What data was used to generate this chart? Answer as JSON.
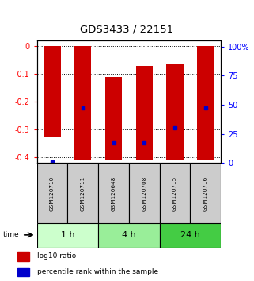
{
  "title": "GDS3433 / 22151",
  "samples": [
    "GSM120710",
    "GSM120711",
    "GSM120648",
    "GSM120708",
    "GSM120715",
    "GSM120716"
  ],
  "time_groups": [
    {
      "label": "1 h",
      "color": "#ccffcc"
    },
    {
      "label": "4 h",
      "color": "#99ee99"
    },
    {
      "label": "24 h",
      "color": "#44cc44"
    }
  ],
  "log10_bottom": [
    -0.325,
    -0.41,
    -0.41,
    -0.41,
    -0.41,
    -0.41
  ],
  "log10_top": [
    0.0,
    0.0,
    -0.11,
    -0.07,
    -0.065,
    0.0
  ],
  "percentile_rank": [
    1.0,
    47.0,
    17.0,
    17.0,
    30.0,
    47.0
  ],
  "ylim_left": [
    -0.42,
    0.02
  ],
  "ylim_right": [
    0,
    105
  ],
  "yticks_left": [
    0,
    -0.1,
    -0.2,
    -0.3,
    -0.4
  ],
  "yticks_right": [
    0,
    25,
    50,
    75,
    100
  ],
  "bar_color": "#cc0000",
  "dot_color": "#0000cc",
  "bar_width": 0.55,
  "legend_red": "log10 ratio",
  "legend_blue": "percentile rank within the sample",
  "background_color": "#ffffff"
}
